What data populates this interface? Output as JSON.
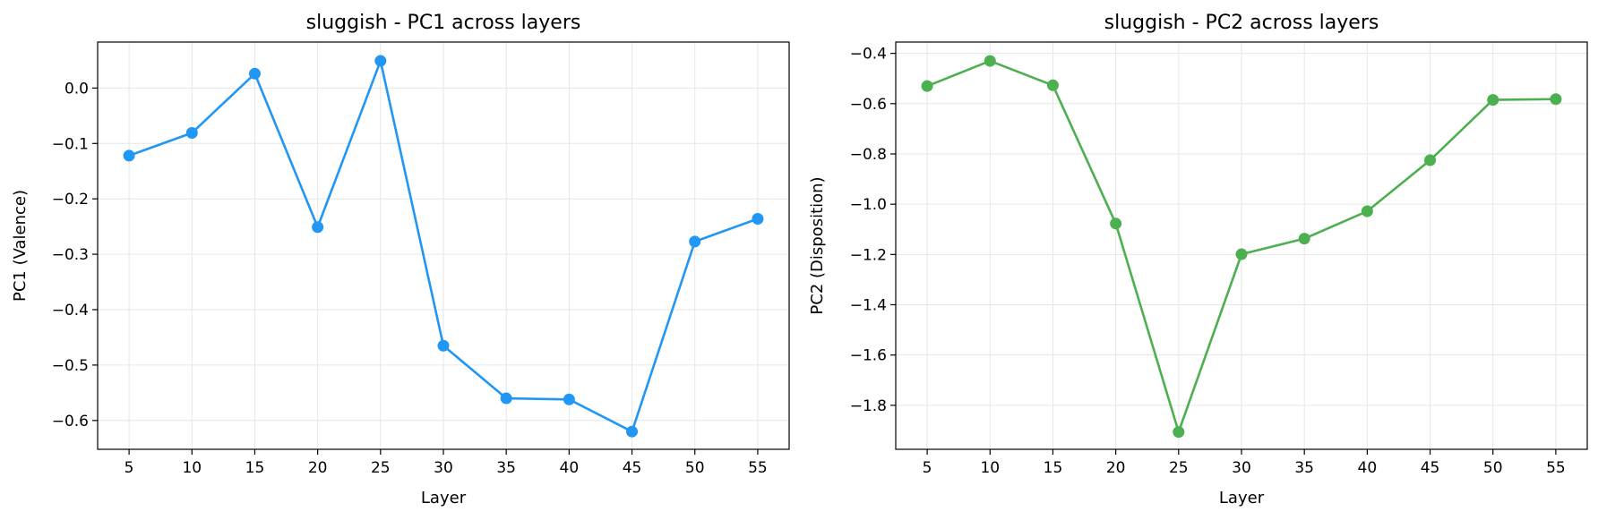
{
  "chart_data": [
    {
      "type": "line",
      "title": "sluggish - PC1 across layers",
      "xlabel": "Layer",
      "ylabel": "PC1 (Valence)",
      "x": [
        5,
        10,
        15,
        20,
        25,
        30,
        35,
        40,
        45,
        50,
        55
      ],
      "xticks": [
        5,
        10,
        15,
        20,
        25,
        30,
        35,
        40,
        45,
        50,
        55
      ],
      "xtick_labels": [
        "5",
        "10",
        "15",
        "20",
        "25",
        "30",
        "35",
        "40",
        "45",
        "50",
        "55"
      ],
      "yticks": [
        0.0,
        -0.1,
        -0.2,
        -0.3,
        -0.4,
        -0.5,
        -0.6
      ],
      "ytick_labels": [
        "0.0",
        "−0.1",
        "−0.2",
        "−0.3",
        "−0.4",
        "−0.5",
        "−0.6"
      ],
      "xlim": [
        2.5,
        57.5
      ],
      "ylim": [
        -0.652,
        0.083
      ],
      "grid": true,
      "series": [
        {
          "color": "#2196F3",
          "values": [
            -0.122,
            -0.081,
            0.026,
            -0.251,
            0.049,
            -0.465,
            -0.56,
            -0.562,
            -0.62,
            -0.277,
            -0.236
          ]
        }
      ]
    },
    {
      "type": "line",
      "title": "sluggish - PC2 across layers",
      "xlabel": "Layer",
      "ylabel": "PC2 (Disposition)",
      "x": [
        5,
        10,
        15,
        20,
        25,
        30,
        35,
        40,
        45,
        50,
        55
      ],
      "xticks": [
        5,
        10,
        15,
        20,
        25,
        30,
        35,
        40,
        45,
        50,
        55
      ],
      "xtick_labels": [
        "5",
        "10",
        "15",
        "20",
        "25",
        "30",
        "35",
        "40",
        "45",
        "50",
        "55"
      ],
      "yticks": [
        -0.4,
        -0.6,
        -0.8,
        -1.0,
        -1.2,
        -1.4,
        -1.6,
        -1.8
      ],
      "ytick_labels": [
        "−0.4",
        "−0.6",
        "−0.8",
        "−1.0",
        "−1.2",
        "−1.4",
        "−1.6",
        "−1.8"
      ],
      "xlim": [
        2.5,
        57.5
      ],
      "ylim": [
        -1.975,
        -0.355
      ],
      "grid": true,
      "series": [
        {
          "color": "#4CAF50",
          "values": [
            -0.53,
            -0.43,
            -0.527,
            -1.077,
            -1.906,
            -1.199,
            -1.137,
            -1.028,
            -0.825,
            -0.585,
            -0.582
          ]
        }
      ]
    }
  ]
}
